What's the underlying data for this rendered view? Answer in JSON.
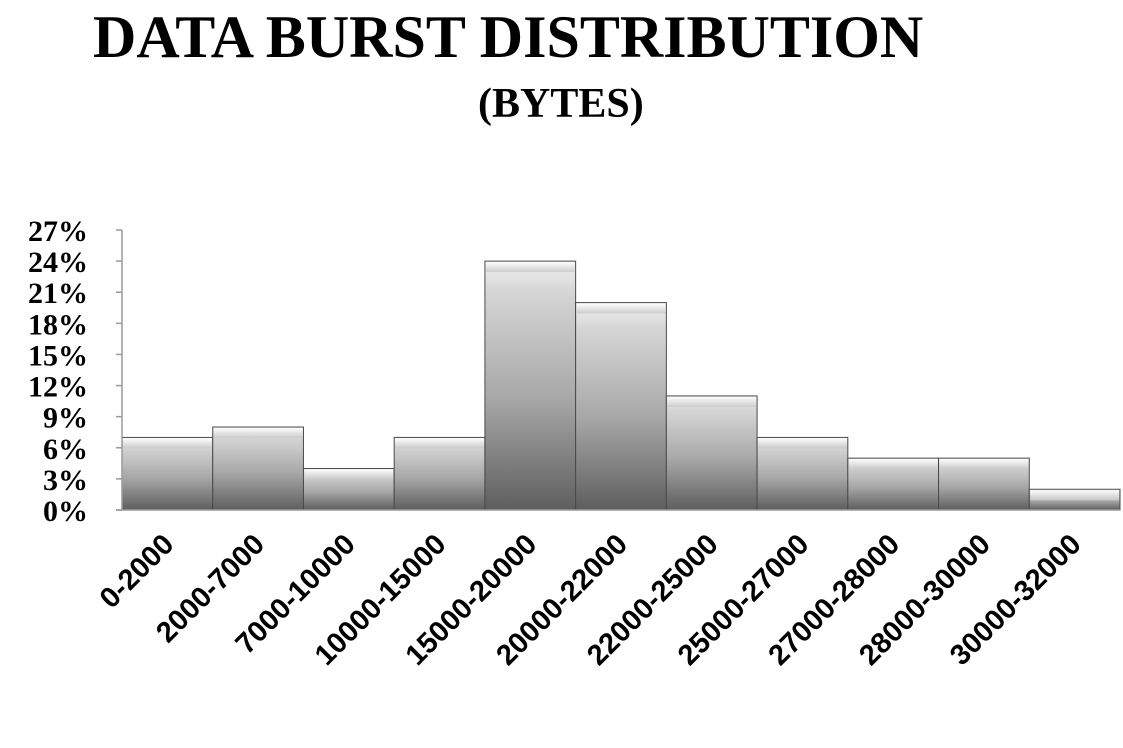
{
  "chart_data": {
    "type": "bar",
    "title": "DATA BURST DISTRIBUTION",
    "subtitle": "(BYTES)",
    "xlabel": "",
    "ylabel": "",
    "categories": [
      "0-2000",
      "2000-7000",
      "7000-10000",
      "10000-15000",
      "15000-20000",
      "20000-22000",
      "22000-25000",
      "25000-27000",
      "27000-28000",
      "28000-30000",
      "30000-32000"
    ],
    "values": [
      7,
      8,
      4,
      7,
      24,
      20,
      11,
      7,
      5,
      5,
      2
    ],
    "value_unit": "%",
    "ylim": [
      0,
      27
    ],
    "yticks": [
      "0%",
      "3%",
      "6%",
      "9%",
      "12%",
      "15%",
      "18%",
      "21%",
      "24%",
      "27%"
    ],
    "grid": false,
    "legend": "none",
    "bar_color": "#a9a9a9"
  }
}
